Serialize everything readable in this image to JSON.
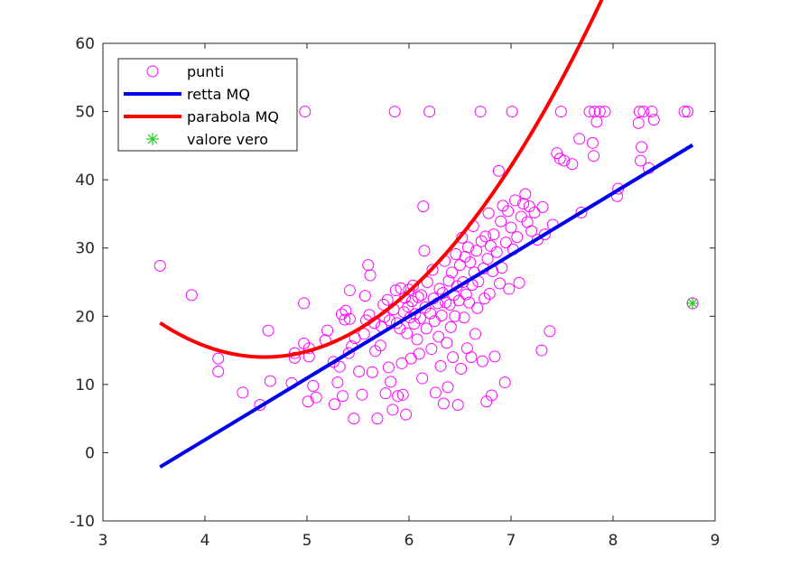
{
  "chart_data": {
    "type": "scatter",
    "title": "",
    "xlabel": "",
    "ylabel": "",
    "xlim": [
      3,
      9
    ],
    "ylim": [
      -10,
      60
    ],
    "x_ticks": [
      3,
      4,
      5,
      6,
      7,
      8,
      9
    ],
    "y_ticks": [
      -10,
      0,
      10,
      20,
      30,
      40,
      50,
      60
    ],
    "grid": false,
    "legend_position": "top-left",
    "series": [
      {
        "name": "punti",
        "kind": "scatter",
        "marker": "circle",
        "color": "#ff00ff",
        "points": [
          [
            3.56,
            27.4
          ],
          [
            3.87,
            23.1
          ],
          [
            4.13,
            13.8
          ],
          [
            4.13,
            11.9
          ],
          [
            4.37,
            8.8
          ],
          [
            4.54,
            7.0
          ],
          [
            4.62,
            17.9
          ],
          [
            4.64,
            10.5
          ],
          [
            4.85,
            10.2
          ],
          [
            4.88,
            13.9
          ],
          [
            4.88,
            14.6
          ],
          [
            4.97,
            16.0
          ],
          [
            4.97,
            21.9
          ],
          [
            4.98,
            50.0
          ],
          [
            5.01,
            7.5
          ],
          [
            5.02,
            15.3
          ],
          [
            5.02,
            14.1
          ],
          [
            5.06,
            9.8
          ],
          [
            5.09,
            8.1
          ],
          [
            5.18,
            16.5
          ],
          [
            5.2,
            17.9
          ],
          [
            5.26,
            13.3
          ],
          [
            5.27,
            7.1
          ],
          [
            5.3,
            10.3
          ],
          [
            5.32,
            12.6
          ],
          [
            5.34,
            20.3
          ],
          [
            5.35,
            8.3
          ],
          [
            5.37,
            19.5
          ],
          [
            5.38,
            20.8
          ],
          [
            5.41,
            14.6
          ],
          [
            5.42,
            23.8
          ],
          [
            5.42,
            19.6
          ],
          [
            5.44,
            15.6
          ],
          [
            5.46,
            5.0
          ],
          [
            5.47,
            16.8
          ],
          [
            5.51,
            11.9
          ],
          [
            5.54,
            8.5
          ],
          [
            5.56,
            17.4
          ],
          [
            5.57,
            23.0
          ],
          [
            5.58,
            19.4
          ],
          [
            5.6,
            27.5
          ],
          [
            5.62,
            26.0
          ],
          [
            5.61,
            20.2
          ],
          [
            5.64,
            11.8
          ],
          [
            5.66,
            19.0
          ],
          [
            5.67,
            14.9
          ],
          [
            5.69,
            5.0
          ],
          [
            5.72,
            15.7
          ],
          [
            5.73,
            18.5
          ],
          [
            5.75,
            21.7
          ],
          [
            5.76,
            19.9
          ],
          [
            5.77,
            8.7
          ],
          [
            5.79,
            22.4
          ],
          [
            5.8,
            12.5
          ],
          [
            5.81,
            19.4
          ],
          [
            5.82,
            10.4
          ],
          [
            5.84,
            6.3
          ],
          [
            5.85,
            21.0
          ],
          [
            5.86,
            50.0
          ],
          [
            5.87,
            23.8
          ],
          [
            5.88,
            19.0
          ],
          [
            5.89,
            8.3
          ],
          [
            5.91,
            18.2
          ],
          [
            5.92,
            24.1
          ],
          [
            5.93,
            13.1
          ],
          [
            5.94,
            8.5
          ],
          [
            5.95,
            20.6
          ],
          [
            5.96,
            22.7
          ],
          [
            5.97,
            5.6
          ],
          [
            5.98,
            17.5
          ],
          [
            5.99,
            21.4
          ],
          [
            6.0,
            23.9
          ],
          [
            6.01,
            19.8
          ],
          [
            6.02,
            13.8
          ],
          [
            6.03,
            22.2
          ],
          [
            6.04,
            24.5
          ],
          [
            6.05,
            18.9
          ],
          [
            6.06,
            20.3
          ],
          [
            6.08,
            16.6
          ],
          [
            6.09,
            22.8
          ],
          [
            6.1,
            14.5
          ],
          [
            6.11,
            19.7
          ],
          [
            6.12,
            23.1
          ],
          [
            6.13,
            10.9
          ],
          [
            6.14,
            36.1
          ],
          [
            6.15,
            29.6
          ],
          [
            6.16,
            21.3
          ],
          [
            6.17,
            18.2
          ],
          [
            6.18,
            25.0
          ],
          [
            6.2,
            50.0
          ],
          [
            6.21,
            20.4
          ],
          [
            6.22,
            15.2
          ],
          [
            6.23,
            26.8
          ],
          [
            6.24,
            22.6
          ],
          [
            6.25,
            19.3
          ],
          [
            6.26,
            8.8
          ],
          [
            6.28,
            21.9
          ],
          [
            6.29,
            17.0
          ],
          [
            6.3,
            24.0
          ],
          [
            6.31,
            12.7
          ],
          [
            6.32,
            20.1
          ],
          [
            6.33,
            23.4
          ],
          [
            6.34,
            7.2
          ],
          [
            6.35,
            28.1
          ],
          [
            6.36,
            22.0
          ],
          [
            6.37,
            16.1
          ],
          [
            6.38,
            9.6
          ],
          [
            6.39,
            25.2
          ],
          [
            6.4,
            21.7
          ],
          [
            6.41,
            18.4
          ],
          [
            6.42,
            26.4
          ],
          [
            6.43,
            14.0
          ],
          [
            6.44,
            23.1
          ],
          [
            6.45,
            20.0
          ],
          [
            6.46,
            29.1
          ],
          [
            6.47,
            24.4
          ],
          [
            6.48,
            7.0
          ],
          [
            6.49,
            22.3
          ],
          [
            6.5,
            27.5
          ],
          [
            6.51,
            12.3
          ],
          [
            6.52,
            31.5
          ],
          [
            6.53,
            25.0
          ],
          [
            6.54,
            19.8
          ],
          [
            6.55,
            28.7
          ],
          [
            6.56,
            23.2
          ],
          [
            6.57,
            15.3
          ],
          [
            6.58,
            30.1
          ],
          [
            6.59,
            22.0
          ],
          [
            6.6,
            27.9
          ],
          [
            6.61,
            14.0
          ],
          [
            6.62,
            24.6
          ],
          [
            6.63,
            33.2
          ],
          [
            6.64,
            26.4
          ],
          [
            6.65,
            17.4
          ],
          [
            6.66,
            29.6
          ],
          [
            6.67,
            21.2
          ],
          [
            6.68,
            25.1
          ],
          [
            6.7,
            50.0
          ],
          [
            6.71,
            31.0
          ],
          [
            6.72,
            13.4
          ],
          [
            6.73,
            27.0
          ],
          [
            6.74,
            22.6
          ],
          [
            6.75,
            31.7
          ],
          [
            6.76,
            7.5
          ],
          [
            6.77,
            28.4
          ],
          [
            6.78,
            35.1
          ],
          [
            6.79,
            23.3
          ],
          [
            6.8,
            30.3
          ],
          [
            6.81,
            8.4
          ],
          [
            6.82,
            26.6
          ],
          [
            6.83,
            32.0
          ],
          [
            6.84,
            14.1
          ],
          [
            6.86,
            29.4
          ],
          [
            6.88,
            41.3
          ],
          [
            6.89,
            24.8
          ],
          [
            6.9,
            33.9
          ],
          [
            6.91,
            27.1
          ],
          [
            6.92,
            36.2
          ],
          [
            6.94,
            10.3
          ],
          [
            6.95,
            30.8
          ],
          [
            6.97,
            35.4
          ],
          [
            6.98,
            24.0
          ],
          [
            7.0,
            33.0
          ],
          [
            7.01,
            50.0
          ],
          [
            7.02,
            29.8
          ],
          [
            7.04,
            37.0
          ],
          [
            7.06,
            31.6
          ],
          [
            7.08,
            24.9
          ],
          [
            7.1,
            34.6
          ],
          [
            7.12,
            36.5
          ],
          [
            7.14,
            37.9
          ],
          [
            7.16,
            33.8
          ],
          [
            7.18,
            36.1
          ],
          [
            7.2,
            32.5
          ],
          [
            7.23,
            35.2
          ],
          [
            7.26,
            31.2
          ],
          [
            7.3,
            15.0
          ],
          [
            7.31,
            36.0
          ],
          [
            7.33,
            32.0
          ],
          [
            7.38,
            17.8
          ],
          [
            7.41,
            33.4
          ],
          [
            7.45,
            43.9
          ],
          [
            7.48,
            43.1
          ],
          [
            7.49,
            50.0
          ],
          [
            7.52,
            42.8
          ],
          [
            7.6,
            42.3
          ],
          [
            7.67,
            46.0
          ],
          [
            7.69,
            35.2
          ],
          [
            7.77,
            50.0
          ],
          [
            7.8,
            45.4
          ],
          [
            7.81,
            43.5
          ],
          [
            7.82,
            50.0
          ],
          [
            7.84,
            48.5
          ],
          [
            7.87,
            50.0
          ],
          [
            7.92,
            50.0
          ],
          [
            8.04,
            37.6
          ],
          [
            8.05,
            38.7
          ],
          [
            8.25,
            48.3
          ],
          [
            8.26,
            50.0
          ],
          [
            8.27,
            42.8
          ],
          [
            8.28,
            44.8
          ],
          [
            8.3,
            50.0
          ],
          [
            8.35,
            41.7
          ],
          [
            8.38,
            50.0
          ],
          [
            8.4,
            48.8
          ],
          [
            8.7,
            50.0
          ],
          [
            8.73,
            50.0
          ],
          [
            8.78,
            21.9
          ]
        ]
      },
      {
        "name": "retta MQ",
        "kind": "line",
        "color": "#0000ee",
        "points": [
          [
            3.56,
            -2.1
          ],
          [
            8.78,
            45.1
          ]
        ]
      },
      {
        "name": "parabola MQ",
        "kind": "curve",
        "color": "#ff0000",
        "coefficients": {
          "a": 4.79,
          "b": -43.9,
          "c": 114.6
        },
        "x_range": [
          3.56,
          8.78
        ]
      },
      {
        "name": "valore vero",
        "kind": "scatter",
        "marker": "asterisk",
        "color": "#22cc22",
        "points": [
          [
            8.78,
            21.9
          ]
        ]
      }
    ]
  }
}
